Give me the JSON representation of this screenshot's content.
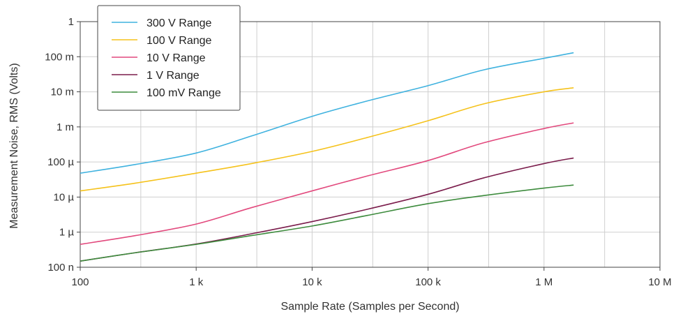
{
  "chart_data": {
    "type": "line",
    "x_scale": "log",
    "y_scale": "log",
    "xlim": [
      100,
      10000000
    ],
    "ylim": [
      1e-07,
      1
    ],
    "grid": true,
    "legend_position": "top-left",
    "xlabel": "Sample Rate (Samples per Second)",
    "ylabel": "Measurement Noise, RMS (Volts)",
    "x_ticks": [
      {
        "value": 100,
        "label": "100"
      },
      {
        "value": 1000,
        "label": "1 k"
      },
      {
        "value": 10000,
        "label": "10 k"
      },
      {
        "value": 100000,
        "label": "100 k"
      },
      {
        "value": 1000000,
        "label": "1 M"
      },
      {
        "value": 10000000,
        "label": "10 M"
      }
    ],
    "x_minor_gridlines": [
      333,
      3333,
      33333,
      333333,
      3333333
    ],
    "y_ticks": [
      {
        "value": 1,
        "label": "1"
      },
      {
        "value": 0.1,
        "label": "100 m"
      },
      {
        "value": 0.01,
        "label": "10 m"
      },
      {
        "value": 0.001,
        "label": "1 m"
      },
      {
        "value": 0.0001,
        "label": "100 µ"
      },
      {
        "value": 1e-05,
        "label": "10 µ"
      },
      {
        "value": 1e-06,
        "label": "1 µ"
      },
      {
        "value": 1e-07,
        "label": "100 n"
      }
    ],
    "series": [
      {
        "name": "300 V Range",
        "color": "#3fb2df",
        "points": [
          [
            100,
            4.8e-05
          ],
          [
            300,
            8.5e-05
          ],
          [
            1000,
            0.00018
          ],
          [
            3000,
            0.00055
          ],
          [
            10000,
            0.002
          ],
          [
            30000,
            0.0055
          ],
          [
            100000,
            0.015
          ],
          [
            300000,
            0.042
          ],
          [
            1000000,
            0.09
          ],
          [
            1800000,
            0.13
          ]
        ]
      },
      {
        "name": "100 V Range",
        "color": "#f5c21b",
        "points": [
          [
            100,
            1.5e-05
          ],
          [
            300,
            2.5e-05
          ],
          [
            1000,
            4.8e-05
          ],
          [
            3000,
            9e-05
          ],
          [
            10000,
            0.0002
          ],
          [
            30000,
            0.0005
          ],
          [
            100000,
            0.0015
          ],
          [
            300000,
            0.0045
          ],
          [
            1000000,
            0.01
          ],
          [
            1800000,
            0.013
          ]
        ]
      },
      {
        "name": "10 V Range",
        "color": "#e2497d",
        "points": [
          [
            100,
            4.5e-07
          ],
          [
            300,
            8e-07
          ],
          [
            1000,
            1.7e-06
          ],
          [
            3000,
            5e-06
          ],
          [
            10000,
            1.5e-05
          ],
          [
            30000,
            4e-05
          ],
          [
            100000,
            0.00011
          ],
          [
            300000,
            0.00035
          ],
          [
            1000000,
            0.0009
          ],
          [
            1800000,
            0.0013
          ]
        ]
      },
      {
        "name": "1 V Range",
        "color": "#7b1d4c",
        "points": [
          [
            100,
            1.5e-07
          ],
          [
            300,
            2.6e-07
          ],
          [
            1000,
            4.6e-07
          ],
          [
            3000,
            9e-07
          ],
          [
            10000,
            2e-06
          ],
          [
            30000,
            4.5e-06
          ],
          [
            100000,
            1.2e-05
          ],
          [
            300000,
            3.5e-05
          ],
          [
            1000000,
            9e-05
          ],
          [
            1800000,
            0.00013
          ]
        ]
      },
      {
        "name": "100 mV Range",
        "color": "#3d8b3d",
        "points": [
          [
            100,
            1.5e-07
          ],
          [
            300,
            2.6e-07
          ],
          [
            1000,
            4.5e-07
          ],
          [
            3000,
            8e-07
          ],
          [
            10000,
            1.5e-06
          ],
          [
            30000,
            3e-06
          ],
          [
            100000,
            6.5e-06
          ],
          [
            300000,
            1.1e-05
          ],
          [
            1000000,
            1.8e-05
          ],
          [
            1800000,
            2.2e-05
          ]
        ]
      }
    ]
  }
}
